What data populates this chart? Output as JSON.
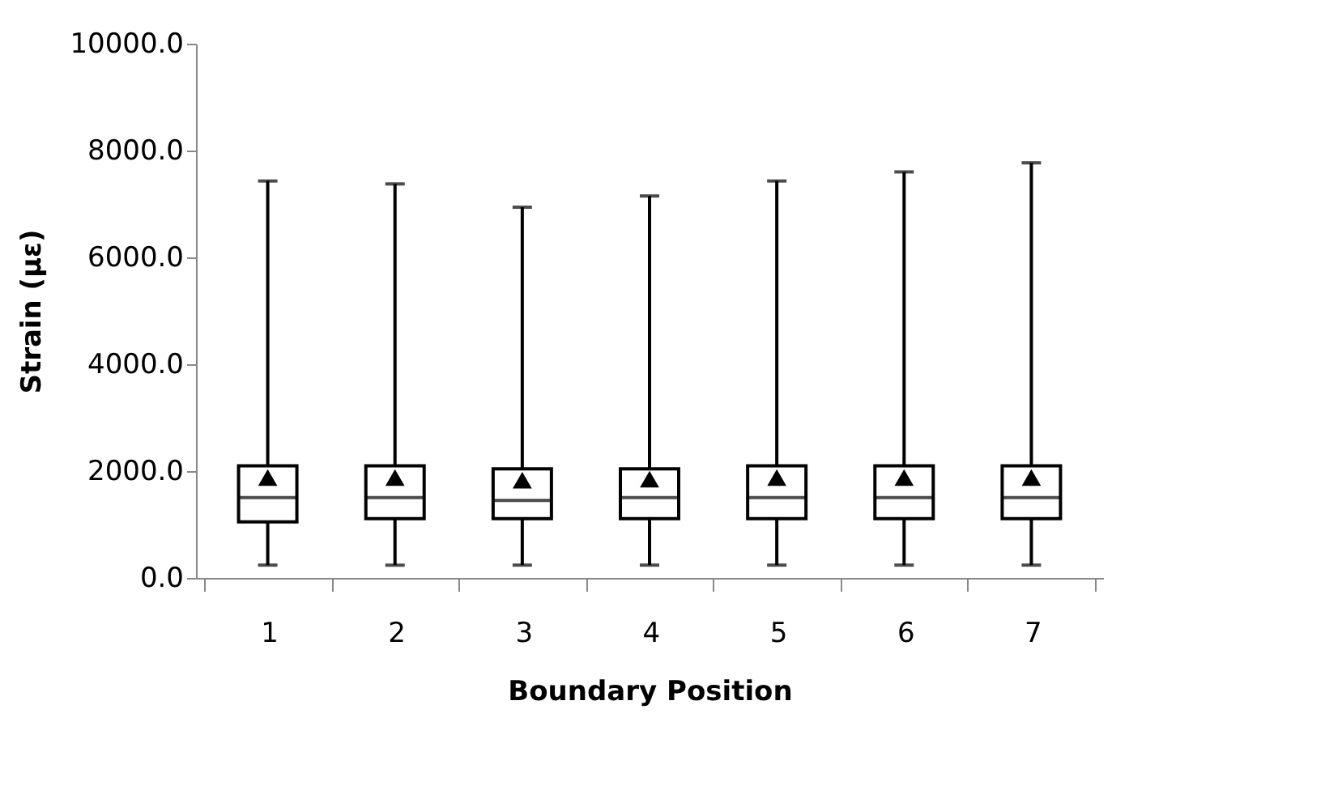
{
  "chart_data": {
    "type": "box",
    "xlabel": "Boundary Position",
    "ylabel": "Strain (με)",
    "categories": [
      "1",
      "2",
      "3",
      "4",
      "5",
      "6",
      "7"
    ],
    "boxes": [
      {
        "low": 240,
        "q1": 1050,
        "median": 1505,
        "q3": 2100,
        "high": 7430,
        "mean": 1880
      },
      {
        "low": 240,
        "q1": 1110,
        "median": 1505,
        "q3": 2100,
        "high": 7375,
        "mean": 1880
      },
      {
        "low": 240,
        "q1": 1110,
        "median": 1450,
        "q3": 2040,
        "high": 6940,
        "mean": 1830
      },
      {
        "low": 240,
        "q1": 1110,
        "median": 1505,
        "q3": 2040,
        "high": 7150,
        "mean": 1850
      },
      {
        "low": 240,
        "q1": 1110,
        "median": 1505,
        "q3": 2100,
        "high": 7430,
        "mean": 1880
      },
      {
        "low": 240,
        "q1": 1110,
        "median": 1505,
        "q3": 2100,
        "high": 7600,
        "mean": 1880
      },
      {
        "low": 240,
        "q1": 1110,
        "median": 1505,
        "q3": 2100,
        "high": 7770,
        "mean": 1880
      }
    ],
    "color": "#000000",
    "marker": "triangle",
    "grid": false,
    "ylim": [
      0,
      10000
    ],
    "yticks": [
      {
        "value": 0,
        "label": "0.0"
      },
      {
        "value": 2000,
        "label": "2000.0"
      },
      {
        "value": 4000,
        "label": "4000.0"
      },
      {
        "value": 6000,
        "label": "6000.0"
      },
      {
        "value": 8000,
        "label": "8000.0"
      },
      {
        "value": 10000,
        "label": "10000.0"
      }
    ]
  }
}
